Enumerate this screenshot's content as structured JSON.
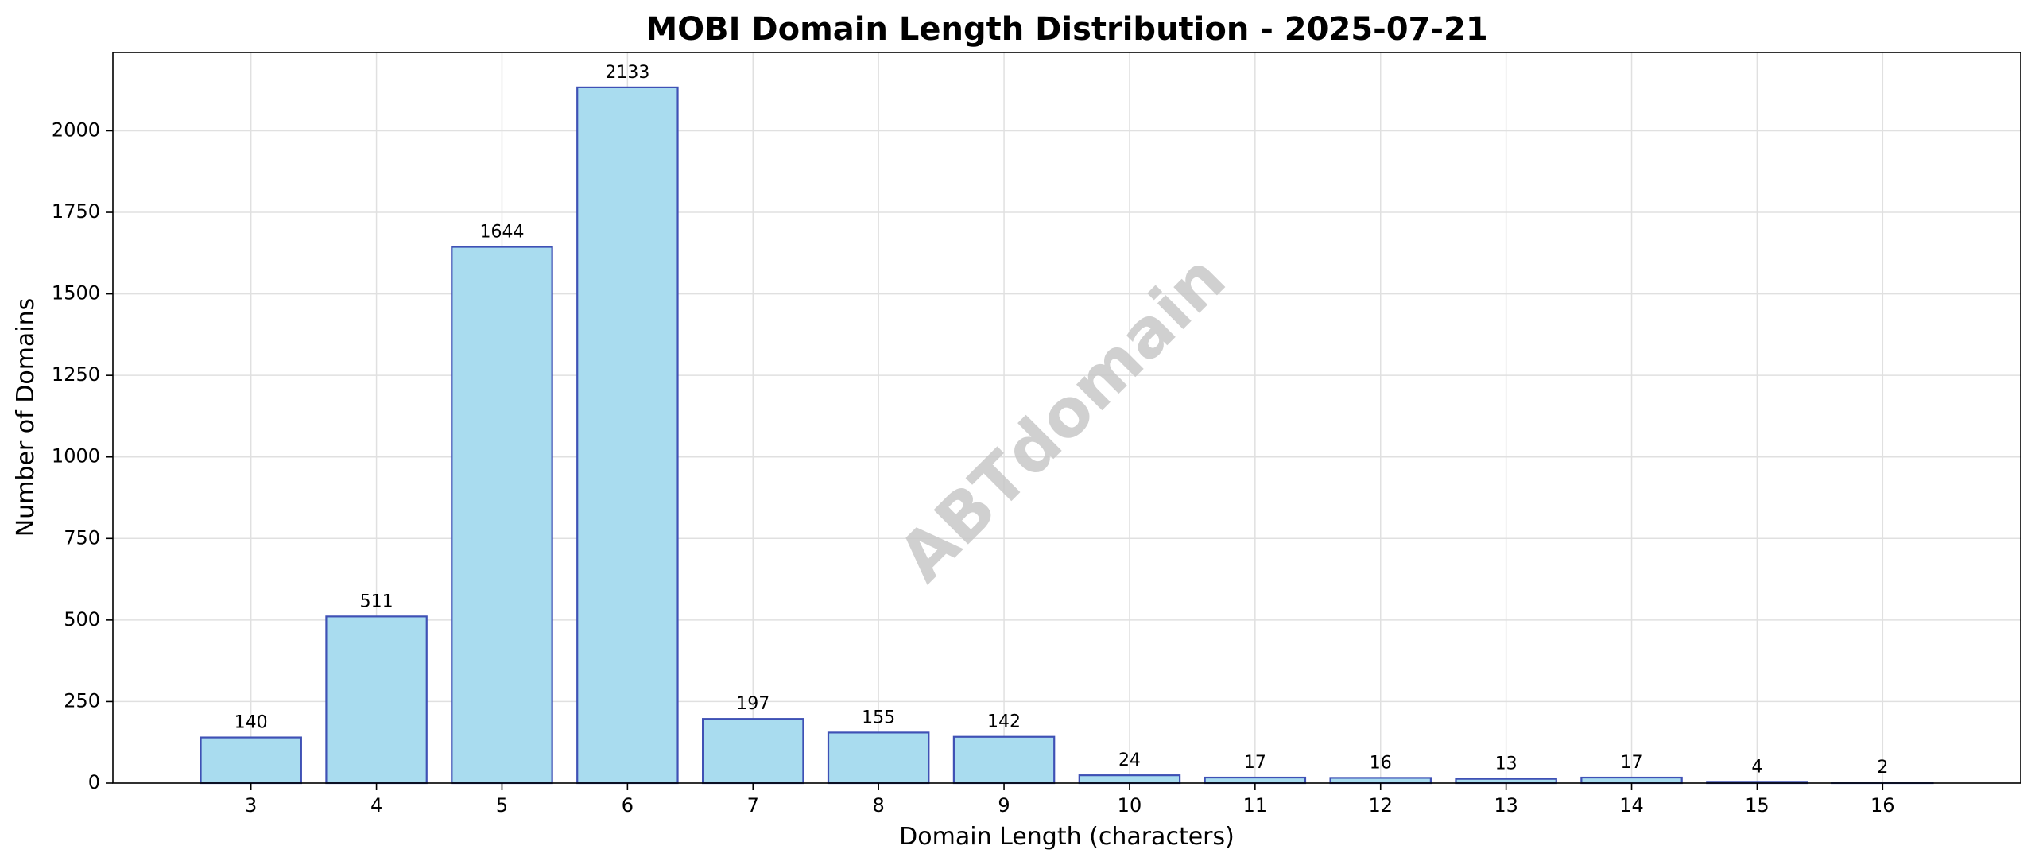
{
  "chart_data": {
    "type": "bar",
    "title": "MOBI Domain Length Distribution - 2025-07-21",
    "xlabel": "Domain Length (characters)",
    "ylabel": "Number of Domains",
    "categories": [
      "3",
      "4",
      "5",
      "6",
      "7",
      "8",
      "9",
      "10",
      "11",
      "12",
      "13",
      "14",
      "15",
      "16"
    ],
    "values": [
      140,
      511,
      1644,
      2133,
      197,
      155,
      142,
      24,
      17,
      16,
      13,
      17,
      4,
      2
    ],
    "ylim": [
      0,
      2240
    ],
    "yticks": [
      0,
      250,
      500,
      750,
      1000,
      1250,
      1500,
      1750,
      2000
    ],
    "grid": true,
    "watermark": "ABTdomain",
    "colors": {
      "bar_fill": "#a9dcef",
      "bar_edge": "#3f51b5",
      "grid": "#e0e0e0",
      "watermark": "#c8c8c8"
    }
  }
}
